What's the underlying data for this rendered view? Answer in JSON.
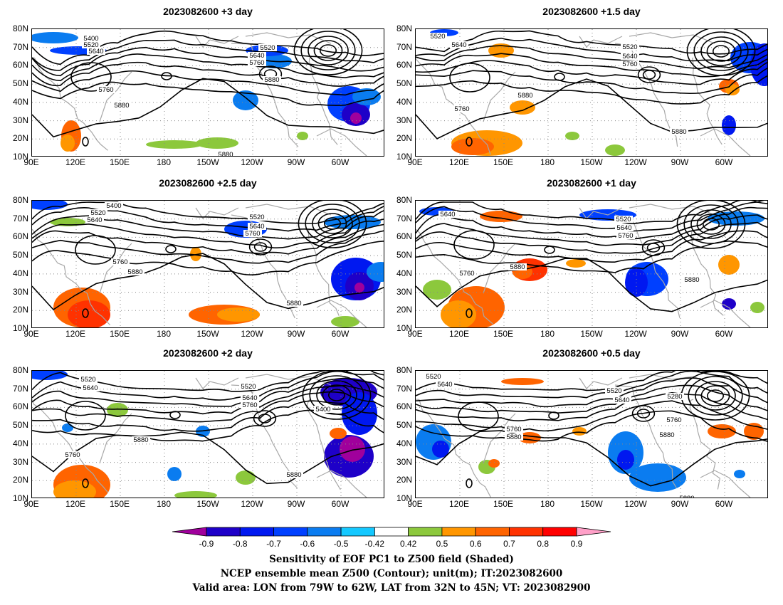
{
  "chart_data": [
    {
      "type": "heatmap",
      "title": "2023082600 +3 day",
      "xlabel": "",
      "ylabel": "",
      "xticks": [
        "90E",
        "120E",
        "150E",
        "180",
        "150W",
        "120W",
        "90W",
        "60W"
      ],
      "yticks": [
        "80N",
        "70N",
        "60N",
        "50N",
        "40N",
        "30N",
        "20N",
        "10N"
      ],
      "xlim": [
        90,
        330
      ],
      "ylim": [
        10,
        80
      ],
      "contour_labels": [
        "5400",
        "5520",
        "5640",
        "5520",
        "5640",
        "5760",
        "5880",
        "5760",
        "5880",
        "5880"
      ]
    },
    {
      "type": "heatmap",
      "title": "2023082600 +1.5 day",
      "xticks": [
        "90E",
        "120E",
        "150E",
        "180",
        "150W",
        "120W",
        "90W",
        "60W"
      ],
      "yticks": [
        "80N",
        "70N",
        "60N",
        "50N",
        "40N",
        "30N",
        "20N",
        "10N"
      ],
      "xlim": [
        90,
        330
      ],
      "ylim": [
        10,
        80
      ],
      "contour_labels": [
        "5520",
        "5640",
        "5520",
        "5640",
        "5760",
        "5880",
        "5760",
        "5880"
      ]
    },
    {
      "type": "heatmap",
      "title": "2023082600 +2.5 day",
      "xticks": [
        "90E",
        "120E",
        "150E",
        "180",
        "150W",
        "120W",
        "90W",
        "60W"
      ],
      "yticks": [
        "80N",
        "70N",
        "60N",
        "50N",
        "40N",
        "30N",
        "20N",
        "10N"
      ],
      "xlim": [
        90,
        330
      ],
      "ylim": [
        10,
        80
      ],
      "contour_labels": [
        "5400",
        "5520",
        "5640",
        "5520",
        "5640",
        "5760",
        "5760",
        "5880",
        "5880"
      ]
    },
    {
      "type": "heatmap",
      "title": "2023082600 +1 day",
      "xticks": [
        "90E",
        "120E",
        "150E",
        "180",
        "150W",
        "120W",
        "90W",
        "60W"
      ],
      "yticks": [
        "80N",
        "70N",
        "60N",
        "50N",
        "40N",
        "30N",
        "20N",
        "10N"
      ],
      "xlim": [
        90,
        330
      ],
      "ylim": [
        10,
        80
      ],
      "contour_labels": [
        "5640",
        "5520",
        "5640",
        "5760",
        "5880",
        "5760",
        "5880"
      ]
    },
    {
      "type": "heatmap",
      "title": "2023082600 +2 day",
      "xticks": [
        "90E",
        "120E",
        "150E",
        "180",
        "150W",
        "120W",
        "90W",
        "60W"
      ],
      "yticks": [
        "80N",
        "70N",
        "60N",
        "50N",
        "40N",
        "30N",
        "20N",
        "10N"
      ],
      "xlim": [
        90,
        330
      ],
      "ylim": [
        10,
        80
      ],
      "contour_labels": [
        "5520",
        "5640",
        "5520",
        "5640",
        "5760",
        "5400",
        "5880",
        "5760",
        "5880"
      ]
    },
    {
      "type": "heatmap",
      "title": "2023082600 +0.5 day",
      "xticks": [
        "90E",
        "120E",
        "150E",
        "180",
        "150W",
        "120W",
        "90W",
        "60W"
      ],
      "yticks": [
        "80N",
        "70N",
        "60N",
        "50N",
        "40N",
        "30N",
        "20N",
        "10N"
      ],
      "xlim": [
        90,
        330
      ],
      "ylim": [
        10,
        80
      ],
      "contour_labels": [
        "5520",
        "5640",
        "5520",
        "5640",
        "5280",
        "5760",
        "5760",
        "5880",
        "5880",
        "5880"
      ]
    }
  ],
  "colorbar": {
    "levels": [
      "-0.9",
      "-0.8",
      "-0.7",
      "-0.6",
      "-0.5",
      "-0.42",
      "0.42",
      "0.5",
      "0.6",
      "0.7",
      "0.8",
      "0.9"
    ],
    "colors": [
      "#a0009c",
      "#1e00c8",
      "#0018f0",
      "#0040ff",
      "#0a7cf0",
      "#14c8ff",
      "#ffffff",
      "#8cc83c",
      "#ff9600",
      "#ff6400",
      "#ff3200",
      "#ff0000",
      "#ffa0c8"
    ]
  },
  "caption": {
    "line1": "Sensitivity of EOF PC1 to Z500 field (Shaded)",
    "line2": "NCEP ensemble mean Z500 (Contour); unit(m); IT:2023082600",
    "line3": "Valid area: LON from 79W to 62W, LAT from 32N to 45N; VT: 2023082900"
  }
}
